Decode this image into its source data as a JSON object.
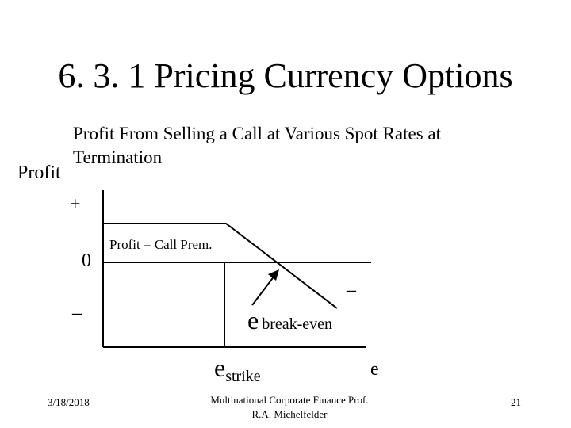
{
  "slide": {
    "title": "6. 3. 1 Pricing Currency Options",
    "subtitle": "Profit From Selling a Call at Various Spot Rates at Termination",
    "y_axis_label": "Profit"
  },
  "diagram": {
    "plus_label": "+",
    "zero_label": "0",
    "minus_left_label": "–",
    "minus_right_label": "–",
    "annotation": "Profit = Call Prem.",
    "break_even_e": "e",
    "break_even_sub": "break-even",
    "strike_e": "e",
    "strike_sub": "strike",
    "x_axis_label": "e"
  },
  "footer": {
    "date": "3/18/2018",
    "course_line1": "Multinational Corporate Finance Prof.",
    "course_line2": "R.A. Michelfelder",
    "page_number": "21"
  },
  "colors": {
    "ink": "#000000",
    "background": "#ffffff"
  }
}
